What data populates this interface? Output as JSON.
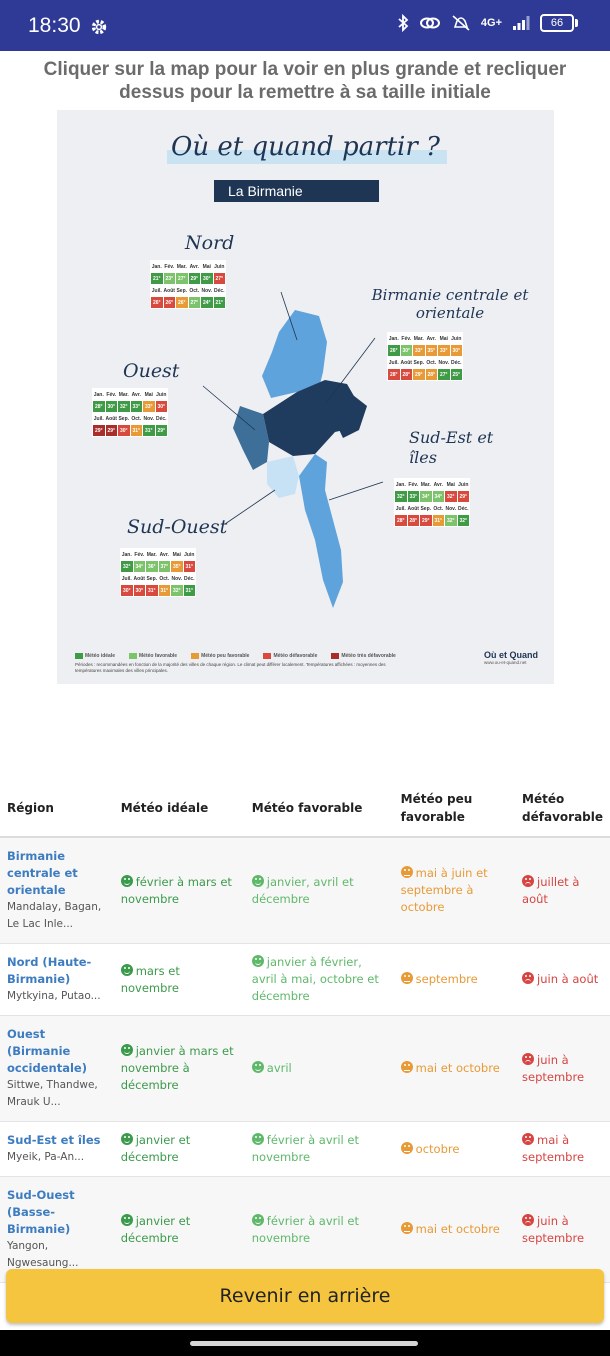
{
  "status": {
    "time": "18:30",
    "network": "4G+",
    "battery": "66",
    "icons": [
      "gear-icon",
      "bluetooth-icon",
      "link-icon",
      "mute-icon",
      "signal-icon",
      "battery-icon"
    ]
  },
  "instruction": "Cliquer sur la map pour la voir en plus grande et recliquer dessus pour la remettre à sa taille initiale",
  "map": {
    "title": "Où et quand partir ?",
    "subtitle": "La Birmanie",
    "regions": {
      "nord": "Nord",
      "centrale": "Birmanie centrale et orientale",
      "ouest": "Ouest",
      "sudest": "Sud-Est et îles",
      "sudouest": "Sud-Ouest"
    },
    "months_row1": [
      "Jan.",
      "Fév.",
      "Mar.",
      "Avr.",
      "Mai",
      "Juin"
    ],
    "months_row2": [
      "Juil.",
      "Août",
      "Sep.",
      "Oct.",
      "Nov.",
      "Déc."
    ],
    "temps": {
      "nord": [
        [
          "21°",
          "23°",
          "27°",
          "29°",
          "30°",
          "27°"
        ],
        [
          "26°",
          "26°",
          "26°",
          "27°",
          "24°",
          "21°"
        ]
      ],
      "centrale": [
        [
          "26°",
          "30°",
          "33°",
          "35°",
          "33°",
          "30°"
        ],
        [
          "28°",
          "28°",
          "29°",
          "28°",
          "27°",
          "25°"
        ]
      ],
      "ouest": [
        [
          "28°",
          "30°",
          "32°",
          "33°",
          "33°",
          "30°"
        ],
        [
          "29°",
          "29°",
          "30°",
          "31°",
          "31°",
          "29°"
        ]
      ],
      "sudest": [
        [
          "32°",
          "33°",
          "34°",
          "34°",
          "32°",
          "29°"
        ],
        [
          "28°",
          "28°",
          "29°",
          "31°",
          "32°",
          "32°"
        ]
      ],
      "sudouest": [
        [
          "32°",
          "34°",
          "36°",
          "37°",
          "35°",
          "31°"
        ],
        [
          "30°",
          "30°",
          "31°",
          "31°",
          "32°",
          "31°"
        ]
      ]
    },
    "legend": [
      "Météo idéale",
      "Météo favorable",
      "Météo peu favorable",
      "Météo défavorable",
      "Météo très défavorable"
    ],
    "footnote": "Périodes : recommandées en fonction de la majorité des villes de chaque région. Le climat peut différer localement. Températures affichées : moyennes des températures maximales des villes principales.",
    "brand": "Où et Quand",
    "brand_url": "www.ou-et-quand.net"
  },
  "table": {
    "headers": [
      "Région",
      "Météo idéale",
      "Météo favorable",
      "Météo peu favorable",
      "Météo défavorable"
    ],
    "rows": [
      {
        "name": "Birmanie centrale et orientale",
        "sub": "Mandalay, Bagan, Le Lac Inle...",
        "ideal": "février à mars et novembre",
        "fav": "janvier, avril et décembre",
        "peu": "mai à juin et septembre à octobre",
        "def": "juillet à août"
      },
      {
        "name": "Nord (Haute-Birmanie)",
        "sub": "Mytkyina, Putao...",
        "ideal": "mars et novembre",
        "fav": "janvier à février, avril à mai, octobre et décembre",
        "peu": "septembre",
        "def": "juin à août"
      },
      {
        "name": "Ouest (Birmanie occidentale)",
        "sub": "Sittwe, Thandwe, Mrauk U...",
        "ideal": "janvier à mars et novembre à décembre",
        "fav": "avril",
        "peu": "mai et octobre",
        "def": "juin à septembre"
      },
      {
        "name": "Sud-Est et îles",
        "sub": "Myeik, Pa-An...",
        "ideal": "janvier et décembre",
        "fav": "février à avril et novembre",
        "peu": "octobre",
        "def": "mai à septembre"
      },
      {
        "name": "Sud-Ouest (Basse-Birmanie)",
        "sub": "Yangon, Ngwesaung...",
        "ideal": "janvier et décembre",
        "fav": "février à avril et novembre",
        "peu": "mai et octobre",
        "def": "juin à septembre"
      }
    ]
  },
  "back_button": "Revenir en arrière",
  "colors": {
    "statusbar": "#2f3a96",
    "ideal": "#3b9a4b",
    "favorable": "#5fb86b",
    "peu": "#e89a36",
    "defavorable": "#d64541",
    "button": "#f5c540",
    "region_link": "#3d7cc0"
  }
}
